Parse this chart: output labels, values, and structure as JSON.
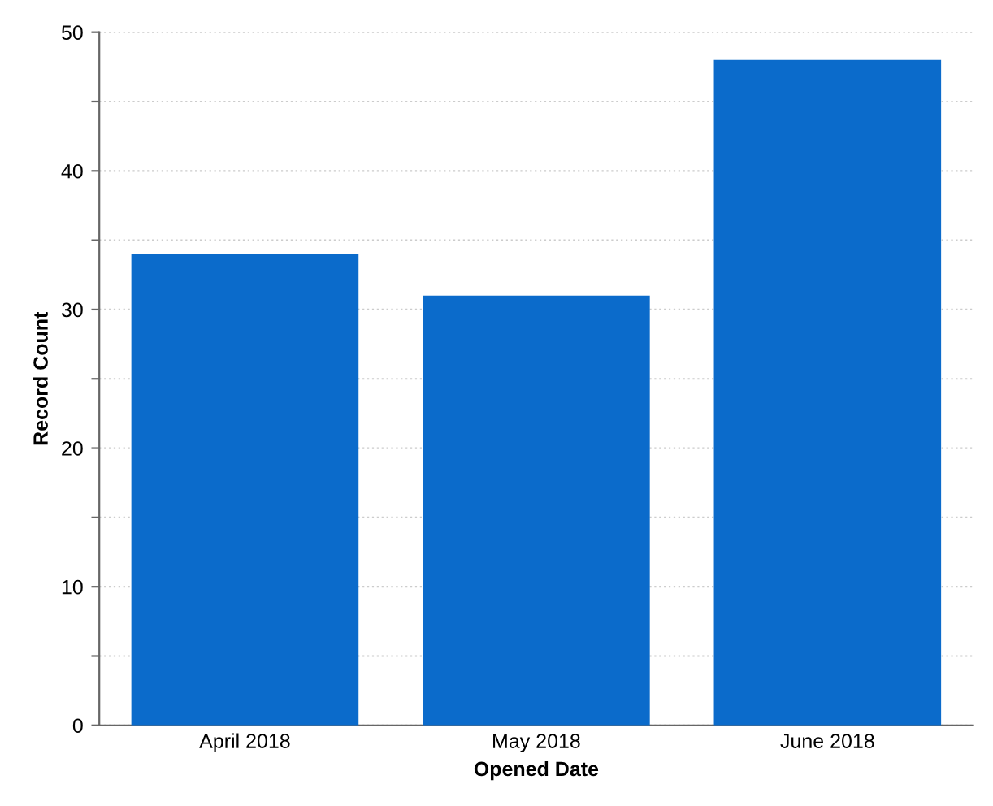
{
  "chart_data": {
    "type": "bar",
    "xlabel": "Opened Date",
    "ylabel": "Record Count",
    "categories": [
      "April 2018",
      "May 2018",
      "June 2018"
    ],
    "values": [
      34,
      31,
      48
    ],
    "color": "#0b6bcb",
    "ylim": [
      0,
      50
    ],
    "yticks": [
      0,
      {
        "value": 5,
        "label": null
      },
      10,
      {
        "value": 15,
        "label": null
      },
      20,
      {
        "value": 25,
        "label": null
      },
      30,
      {
        "value": 35,
        "label": null
      },
      40,
      {
        "value": 45,
        "label": null
      },
      50
    ],
    "grid": "y"
  }
}
